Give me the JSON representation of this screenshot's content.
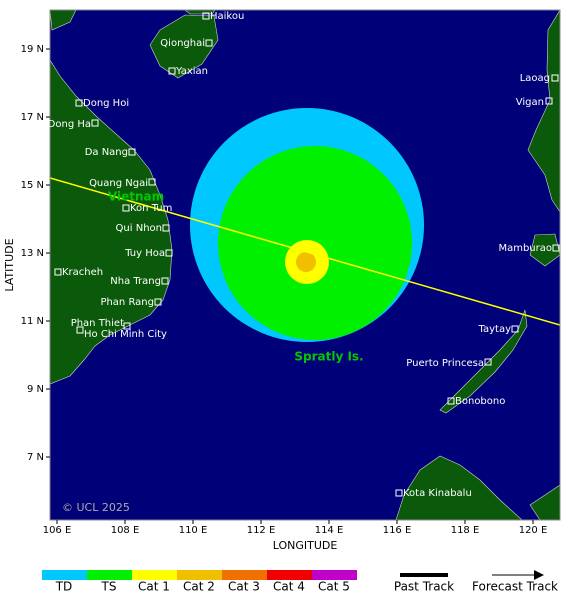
{
  "map": {
    "axes": {
      "x_label": "LONGITUDE",
      "y_label": "LATITUDE",
      "xticks": [
        {
          "value": 106,
          "label": "106 E"
        },
        {
          "value": 108,
          "label": "108 E"
        },
        {
          "value": 110,
          "label": "110 E"
        },
        {
          "value": 112,
          "label": "112 E"
        },
        {
          "value": 114,
          "label": "114 E"
        },
        {
          "value": 116,
          "label": "116 E"
        },
        {
          "value": 118,
          "label": "118 E"
        },
        {
          "value": 120,
          "label": "120 E"
        }
      ],
      "yticks": [
        {
          "value": 7,
          "label": "7 N"
        },
        {
          "value": 9,
          "label": "9 N"
        },
        {
          "value": 11,
          "label": "11 N"
        },
        {
          "value": 13,
          "label": "13 N"
        },
        {
          "value": 15,
          "label": "15 N"
        },
        {
          "value": 17,
          "label": "17 N"
        },
        {
          "value": 19,
          "label": "19 N"
        }
      ]
    },
    "places": [
      "Haikou",
      "Qionghai",
      "Yaxian",
      "Dong Hoi",
      "Dong Ha",
      "Da Nang",
      "Quang Ngai",
      "Kon Tum",
      "Qui Nhon",
      "Tuy Hoa",
      "Kracheh",
      "Nha Trang",
      "Phan Rang",
      "Phan Thiet",
      "Ho Chi Minh City",
      "Laoag",
      "Vigan",
      "Mamburao",
      "Taytay",
      "Puerto Princesa",
      "Bonobono",
      "Kota Kinabalu"
    ],
    "region_labels": [
      "Vietnam",
      "Spratly Is."
    ],
    "copyright": "© UCL 2025",
    "legend": {
      "intensity": [
        {
          "label": "TD",
          "color": "#00c8ff"
        },
        {
          "label": "TS",
          "color": "#00f000"
        },
        {
          "label": "Cat 1",
          "color": "#ffff00"
        },
        {
          "label": "Cat 2",
          "color": "#f0c000"
        },
        {
          "label": "Cat 3",
          "color": "#f07000"
        },
        {
          "label": "Cat 4",
          "color": "#f00000"
        },
        {
          "label": "Cat 5",
          "color": "#c000c8"
        }
      ],
      "tracks": [
        "Past Track",
        "Forecast Track"
      ]
    }
  }
}
